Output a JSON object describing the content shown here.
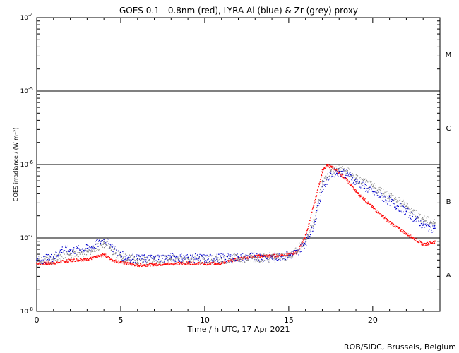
{
  "chart_data": {
    "type": "scatter",
    "title": "GOES 0.1—0.8nm (red), LYRA Al (blue) & Zr (grey) proxy",
    "xlabel": "Time / h UTC, 17 Apr 2021",
    "ylabel": "GOES irradiance / (W m⁻²)",
    "xlim": [
      0,
      24
    ],
    "ylim_log10": [
      -8,
      -4
    ],
    "xticks": [
      0,
      5,
      10,
      15,
      20
    ],
    "yticks": [
      {
        "base": "10",
        "exp": "-8",
        "log": -8
      },
      {
        "base": "10",
        "exp": "-7",
        "log": -7
      },
      {
        "base": "10",
        "exp": "-6",
        "log": -6
      },
      {
        "base": "10",
        "exp": "-5",
        "log": -5
      },
      {
        "base": "10",
        "exp": "-4",
        "log": -4
      }
    ],
    "flare_classes": [
      {
        "label": "A",
        "log": -7.5
      },
      {
        "label": "B",
        "log": -6.5
      },
      {
        "label": "C",
        "log": -5.5
      },
      {
        "label": "M",
        "log": -4.5
      }
    ],
    "threshold_lines_log": [
      -7,
      -6,
      -5
    ],
    "series": [
      {
        "name": "GOES 0.1-0.8nm",
        "color": "#ff0000",
        "x": [
          0,
          1,
          2,
          3,
          3.5,
          4,
          4.5,
          5,
          6,
          7,
          8,
          9,
          10,
          11,
          12,
          13,
          14,
          15,
          15.5,
          16,
          16.5,
          17,
          17.3,
          17.6,
          18,
          18.5,
          19,
          20,
          21,
          22,
          23,
          23.7
        ],
        "values": [
          4.5e-08,
          4.6e-08,
          5e-08,
          5.2e-08,
          5.5e-08,
          6e-08,
          5e-08,
          4.7e-08,
          4.3e-08,
          4.4e-08,
          4.5e-08,
          4.6e-08,
          4.5e-08,
          4.6e-08,
          5.3e-08,
          5.7e-08,
          5.8e-08,
          6e-08,
          6.5e-08,
          1.1e-07,
          3e-07,
          8.5e-07,
          9.8e-07,
          9.2e-07,
          7.8e-07,
          6e-07,
          4.3e-07,
          2.6e-07,
          1.65e-07,
          1.15e-07,
          8.2e-08,
          9e-08
        ]
      },
      {
        "name": "LYRA Al proxy",
        "color": "#0000cc",
        "x": [
          0,
          1,
          1.5,
          2,
          3,
          3.5,
          4,
          4.5,
          5,
          6,
          7,
          8,
          9,
          10,
          11,
          12,
          13,
          14,
          15,
          15.5,
          16,
          16.5,
          17,
          17.5,
          18,
          18.5,
          19,
          20,
          21,
          22,
          23,
          23.7
        ],
        "values": [
          5e-08,
          5.5e-08,
          7e-08,
          6.8e-08,
          7.2e-08,
          8.2e-08,
          9.5e-08,
          7.5e-08,
          5.8e-08,
          5.2e-08,
          5.3e-08,
          5.5e-08,
          5.4e-08,
          5.3e-08,
          5.4e-08,
          5.5e-08,
          5.6e-08,
          5.5e-08,
          5.8e-08,
          6.5e-08,
          9e-08,
          1.6e-07,
          5e-07,
          7.6e-07,
          8.1e-07,
          7.5e-07,
          5.8e-07,
          4.3e-07,
          3.2e-07,
          2.3e-07,
          1.5e-07,
          1.35e-07
        ]
      },
      {
        "name": "LYRA Zr proxy",
        "color": "#888888",
        "x": [
          0,
          1,
          2,
          3,
          4,
          5,
          6,
          7,
          8,
          9,
          10,
          11,
          12,
          13,
          14,
          15,
          16,
          16.5,
          17,
          17.5,
          18,
          18.5,
          19,
          20,
          21,
          22,
          23,
          23.7
        ],
        "values": [
          4.8e-08,
          5.2e-08,
          6e-08,
          6.5e-08,
          8.5e-08,
          5.5e-08,
          5e-08,
          5.1e-08,
          5.2e-08,
          5.2e-08,
          5.1e-08,
          5.2e-08,
          5.3e-08,
          5.4e-08,
          5.4e-08,
          5.7e-08,
          9.5e-08,
          1.8e-07,
          5.8e-07,
          8.3e-07,
          8.8e-07,
          8.2e-07,
          6.5e-07,
          5e-07,
          3.8e-07,
          2.7e-07,
          1.8e-07,
          1.6e-07
        ]
      }
    ]
  },
  "credit": "ROB/SIDC, Brussels, Belgium"
}
